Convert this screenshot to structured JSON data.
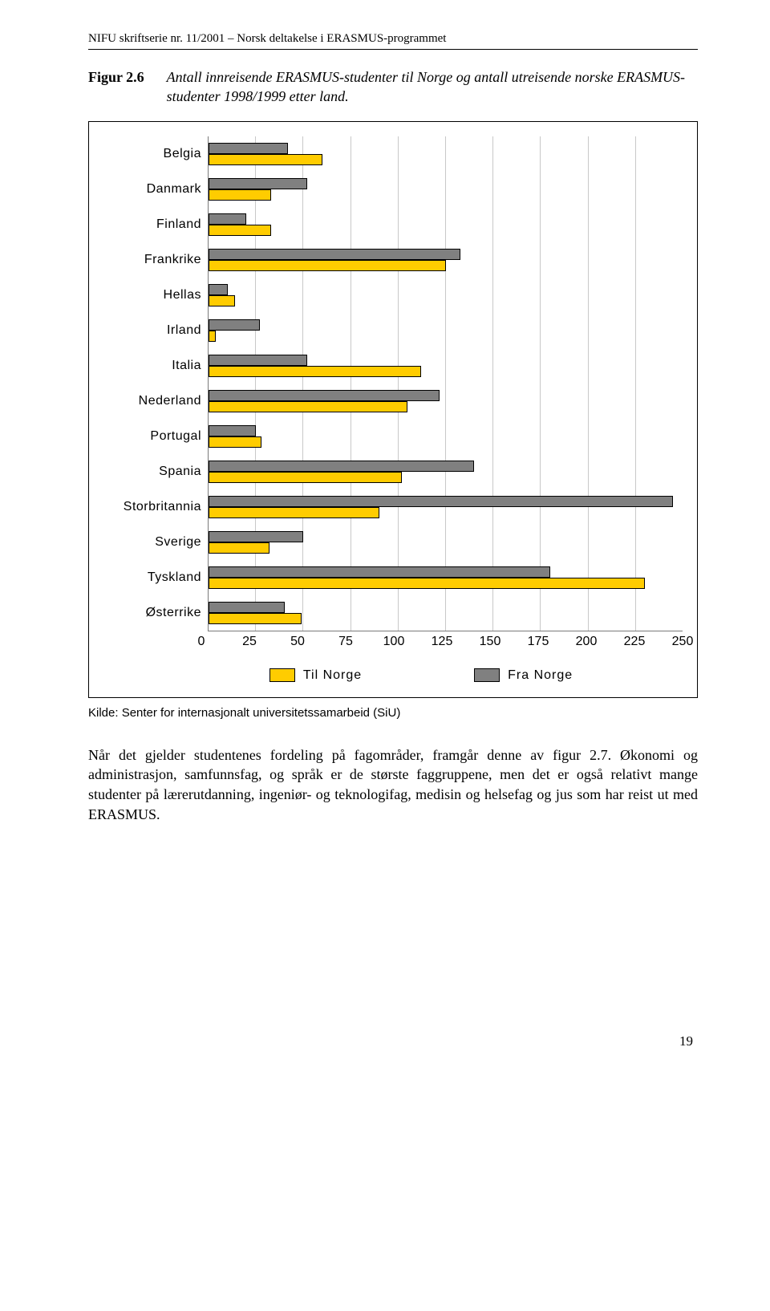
{
  "header": "NIFU skriftserie nr. 11/2001 – Norsk deltakelse i ERASMUS-programmet",
  "figure": {
    "label": "Figur 2.6",
    "caption": "Antall innreisende ERASMUS-studenter til Norge og antall utreisende norske ERASMUS-studenter 1998/1999 etter land."
  },
  "chart": {
    "type": "bar",
    "orientation": "horizontal",
    "xlim": [
      0,
      250
    ],
    "xtick_step": 25,
    "xticks": [
      "0",
      "25",
      "50",
      "75",
      "100",
      "125",
      "150",
      "175",
      "200",
      "225",
      "250"
    ],
    "series": [
      {
        "name": "Fra Norge",
        "color": "#808080"
      },
      {
        "name": "Til Norge",
        "color": "#ffcc00"
      }
    ],
    "categories": [
      {
        "label": "Belgia",
        "fra": 42,
        "til": 60
      },
      {
        "label": "Danmark",
        "fra": 52,
        "til": 33
      },
      {
        "label": "Finland",
        "fra": 20,
        "til": 33
      },
      {
        "label": "Frankrike",
        "fra": 133,
        "til": 125
      },
      {
        "label": "Hellas",
        "fra": 10,
        "til": 14
      },
      {
        "label": "Irland",
        "fra": 27,
        "til": 4
      },
      {
        "label": "Italia",
        "fra": 52,
        "til": 112
      },
      {
        "label": "Nederland",
        "fra": 122,
        "til": 105
      },
      {
        "label": "Portugal",
        "fra": 25,
        "til": 28
      },
      {
        "label": "Spania",
        "fra": 140,
        "til": 102
      },
      {
        "label": "Storbritannia",
        "fra": 245,
        "til": 90
      },
      {
        "label": "Sverige",
        "fra": 50,
        "til": 32
      },
      {
        "label": "Tyskland",
        "fra": 180,
        "til": 230
      },
      {
        "label": "Østerrike",
        "fra": 40,
        "til": 49
      }
    ],
    "legend_labels": {
      "til": "Til Norge",
      "fra": "Fra Norge"
    },
    "grid_color": "#c8c8c8",
    "bg_color": "#ffffff",
    "label_font": "Arial",
    "label_fontsize": 16
  },
  "source": "Kilde: Senter for internasjonalt universitetssamarbeid (SiU)",
  "body": "Når det gjelder studentenes fordeling på fagområder, framgår denne av figur 2.7. Økonomi og administrasjon, samfunnsfag, og språk er de største faggruppene, men det er også relativt mange studenter på lærerutdanning, ingeniør- og teknologifag, medisin og helsefag og jus som har reist ut med ERASMUS.",
  "page_number": "19"
}
